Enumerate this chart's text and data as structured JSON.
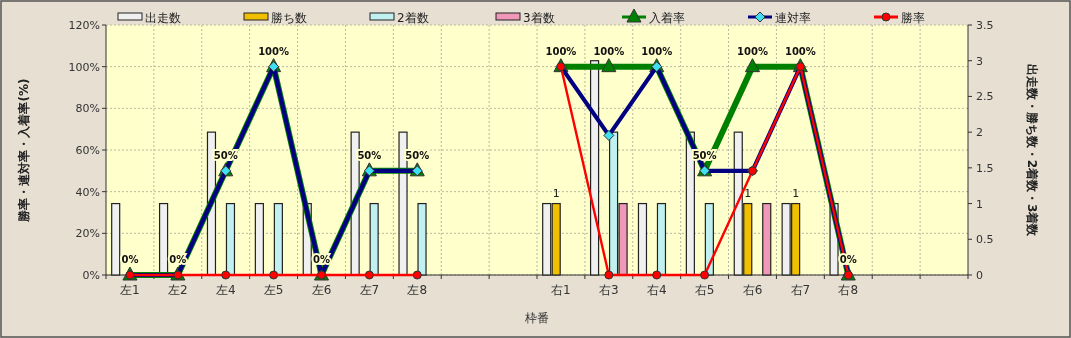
{
  "chart_data": {
    "type": "bar",
    "xlabel": "枠番",
    "ylabel": "勝率・連対率・入着率(%)",
    "y2label": "出走数・勝ち数・2着数・3着数",
    "categories": [
      "左1",
      "左2",
      "左4",
      "左5",
      "左6",
      "左7",
      "左8",
      null,
      null,
      "右1",
      "右3",
      "右4",
      "右5",
      "右6",
      "右7",
      "右8",
      null,
      null
    ],
    "ylim": [
      0,
      120
    ],
    "yticks": [
      {
        "value": 0,
        "label": "0%"
      },
      {
        "value": 20,
        "label": "20%"
      },
      {
        "value": 40,
        "label": "40%"
      },
      {
        "value": 60,
        "label": "60%"
      },
      {
        "value": 80,
        "label": "80%"
      },
      {
        "value": 100,
        "label": "100%"
      },
      {
        "value": 120,
        "label": "120%"
      }
    ],
    "y2lim": [
      0,
      3.5
    ],
    "y2ticks": [
      0,
      0.5,
      1,
      1.5,
      2,
      2.5,
      3,
      3.5
    ],
    "grid": true,
    "legend": "top",
    "series": [
      {
        "name": "出走数",
        "axis": "y2",
        "color": "#f0f0f0",
        "values": [
          1,
          1,
          2,
          1,
          1,
          2,
          2,
          null,
          null,
          1,
          3,
          1,
          2,
          2,
          1,
          1,
          null,
          null
        ]
      },
      {
        "name": "勝ち数",
        "axis": "y2",
        "color": "#f0c000",
        "values": [
          0,
          0,
          0,
          0,
          0,
          0,
          0,
          null,
          null,
          1,
          0,
          0,
          0,
          1,
          1,
          0,
          null,
          null
        ],
        "value_labels": [
          null,
          null,
          null,
          null,
          null,
          null,
          null,
          null,
          null,
          "1",
          null,
          null,
          null,
          "1",
          "1",
          null,
          null,
          null
        ]
      },
      {
        "name": "2着数",
        "axis": "y2",
        "color": "#c0f0f0",
        "values": [
          0,
          0,
          1,
          1,
          0,
          1,
          1,
          null,
          null,
          0,
          2,
          1,
          1,
          0,
          0,
          0,
          null,
          null
        ]
      },
      {
        "name": "3着数",
        "axis": "y2",
        "color": "#f098b8",
        "values": [
          0,
          0,
          0,
          0,
          0,
          0,
          0,
          null,
          null,
          0,
          1,
          0,
          0,
          1,
          0,
          0,
          null,
          null
        ]
      },
      {
        "name": "入着率",
        "type": "line",
        "color": "#008000",
        "marker": "triangle",
        "values": [
          0,
          0,
          50,
          100,
          0,
          50,
          50,
          null,
          null,
          100,
          100,
          100,
          50,
          100,
          100,
          0,
          null,
          null
        ],
        "value_labels": [
          "0%",
          "0%",
          "50%",
          "100%",
          "0%",
          "50%",
          "50%",
          null,
          null,
          "100%",
          "100%",
          "100%",
          "50%",
          "100%",
          "100%",
          "0%",
          null,
          null
        ]
      },
      {
        "name": "連対率",
        "type": "line",
        "color": "#000080",
        "marker": "diamond",
        "values": [
          0,
          0,
          50,
          100,
          0,
          50,
          50,
          null,
          null,
          100,
          67,
          100,
          50,
          50,
          100,
          0,
          null,
          null
        ]
      },
      {
        "name": "勝率",
        "type": "line",
        "color": "#ff0000",
        "marker": "circle",
        "values": [
          0,
          0,
          0,
          0,
          0,
          0,
          0,
          null,
          null,
          100,
          0,
          0,
          0,
          50,
          100,
          0,
          null,
          null
        ]
      }
    ]
  }
}
